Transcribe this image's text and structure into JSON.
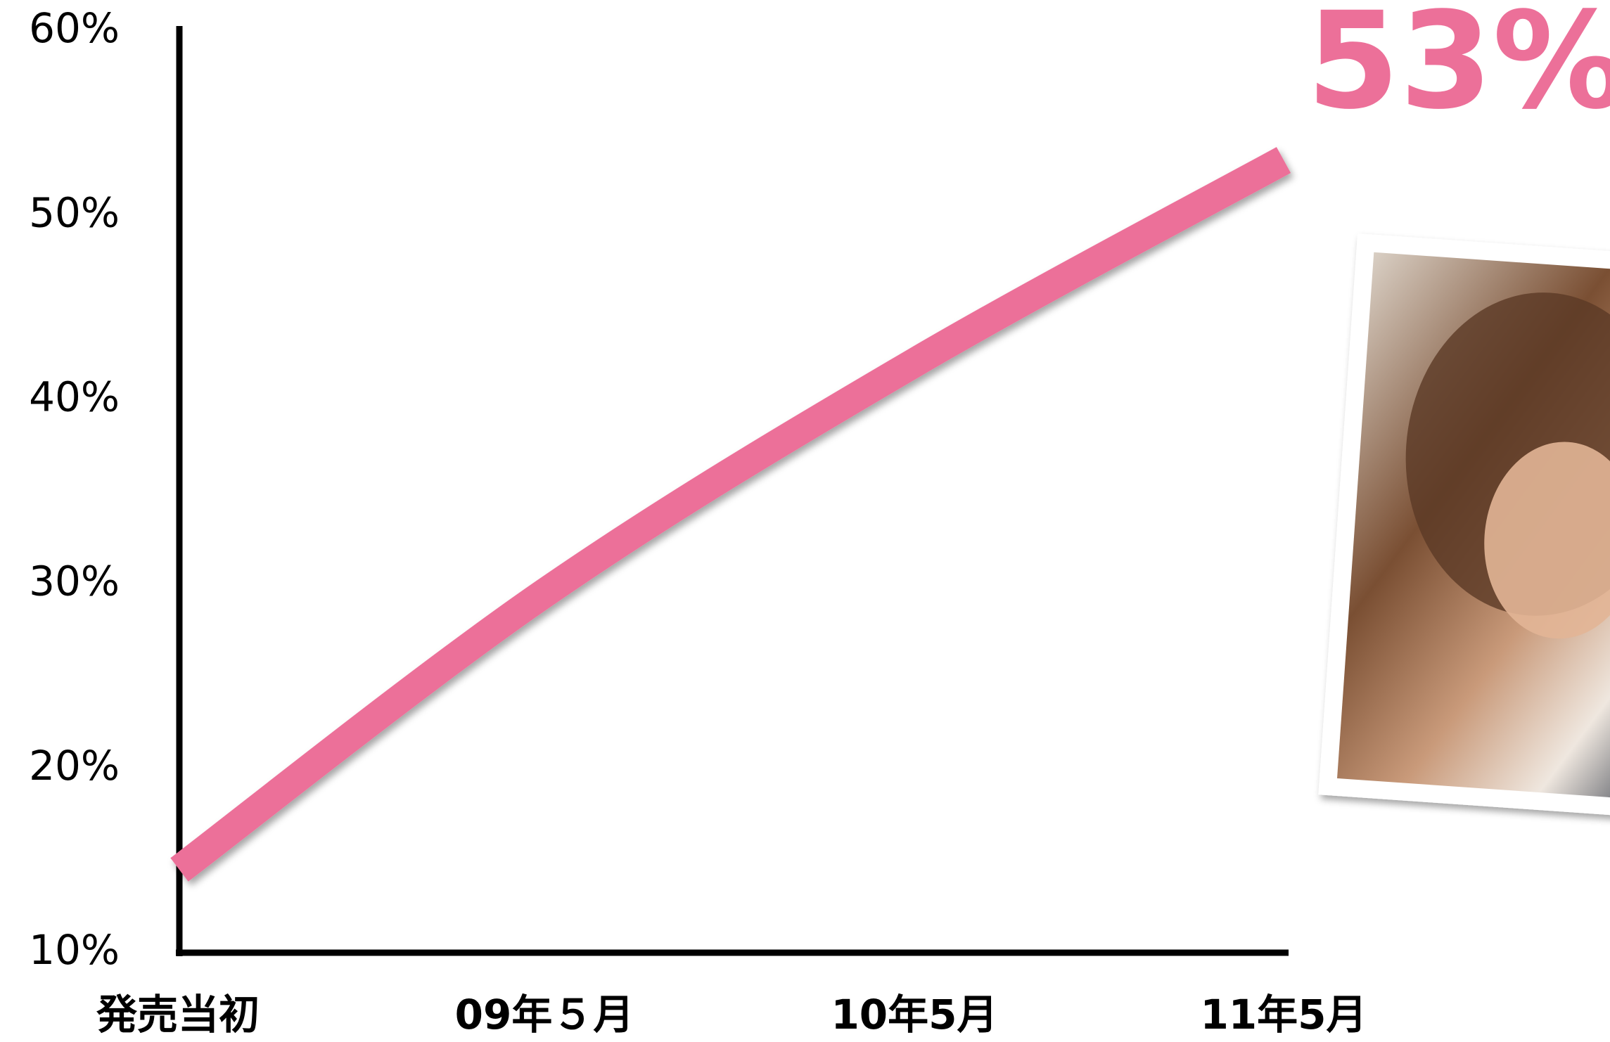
{
  "chart_data": {
    "type": "line",
    "categories": [
      "発売当初",
      "09年５月",
      "10年5月",
      "11年5月"
    ],
    "series": [
      {
        "color": "#ec7099",
        "values": [
          14.5,
          29.5,
          42,
          53
        ]
      }
    ],
    "annotation": "53%",
    "ylim": [
      10,
      60
    ],
    "yticks": [
      {
        "value": 10,
        "label": "10%"
      },
      {
        "value": 20,
        "label": "20%"
      },
      {
        "value": 30,
        "label": "30%"
      },
      {
        "value": 40,
        "label": "40%"
      },
      {
        "value": 50,
        "label": "50%"
      },
      {
        "value": 60,
        "label": "60%"
      }
    ]
  }
}
